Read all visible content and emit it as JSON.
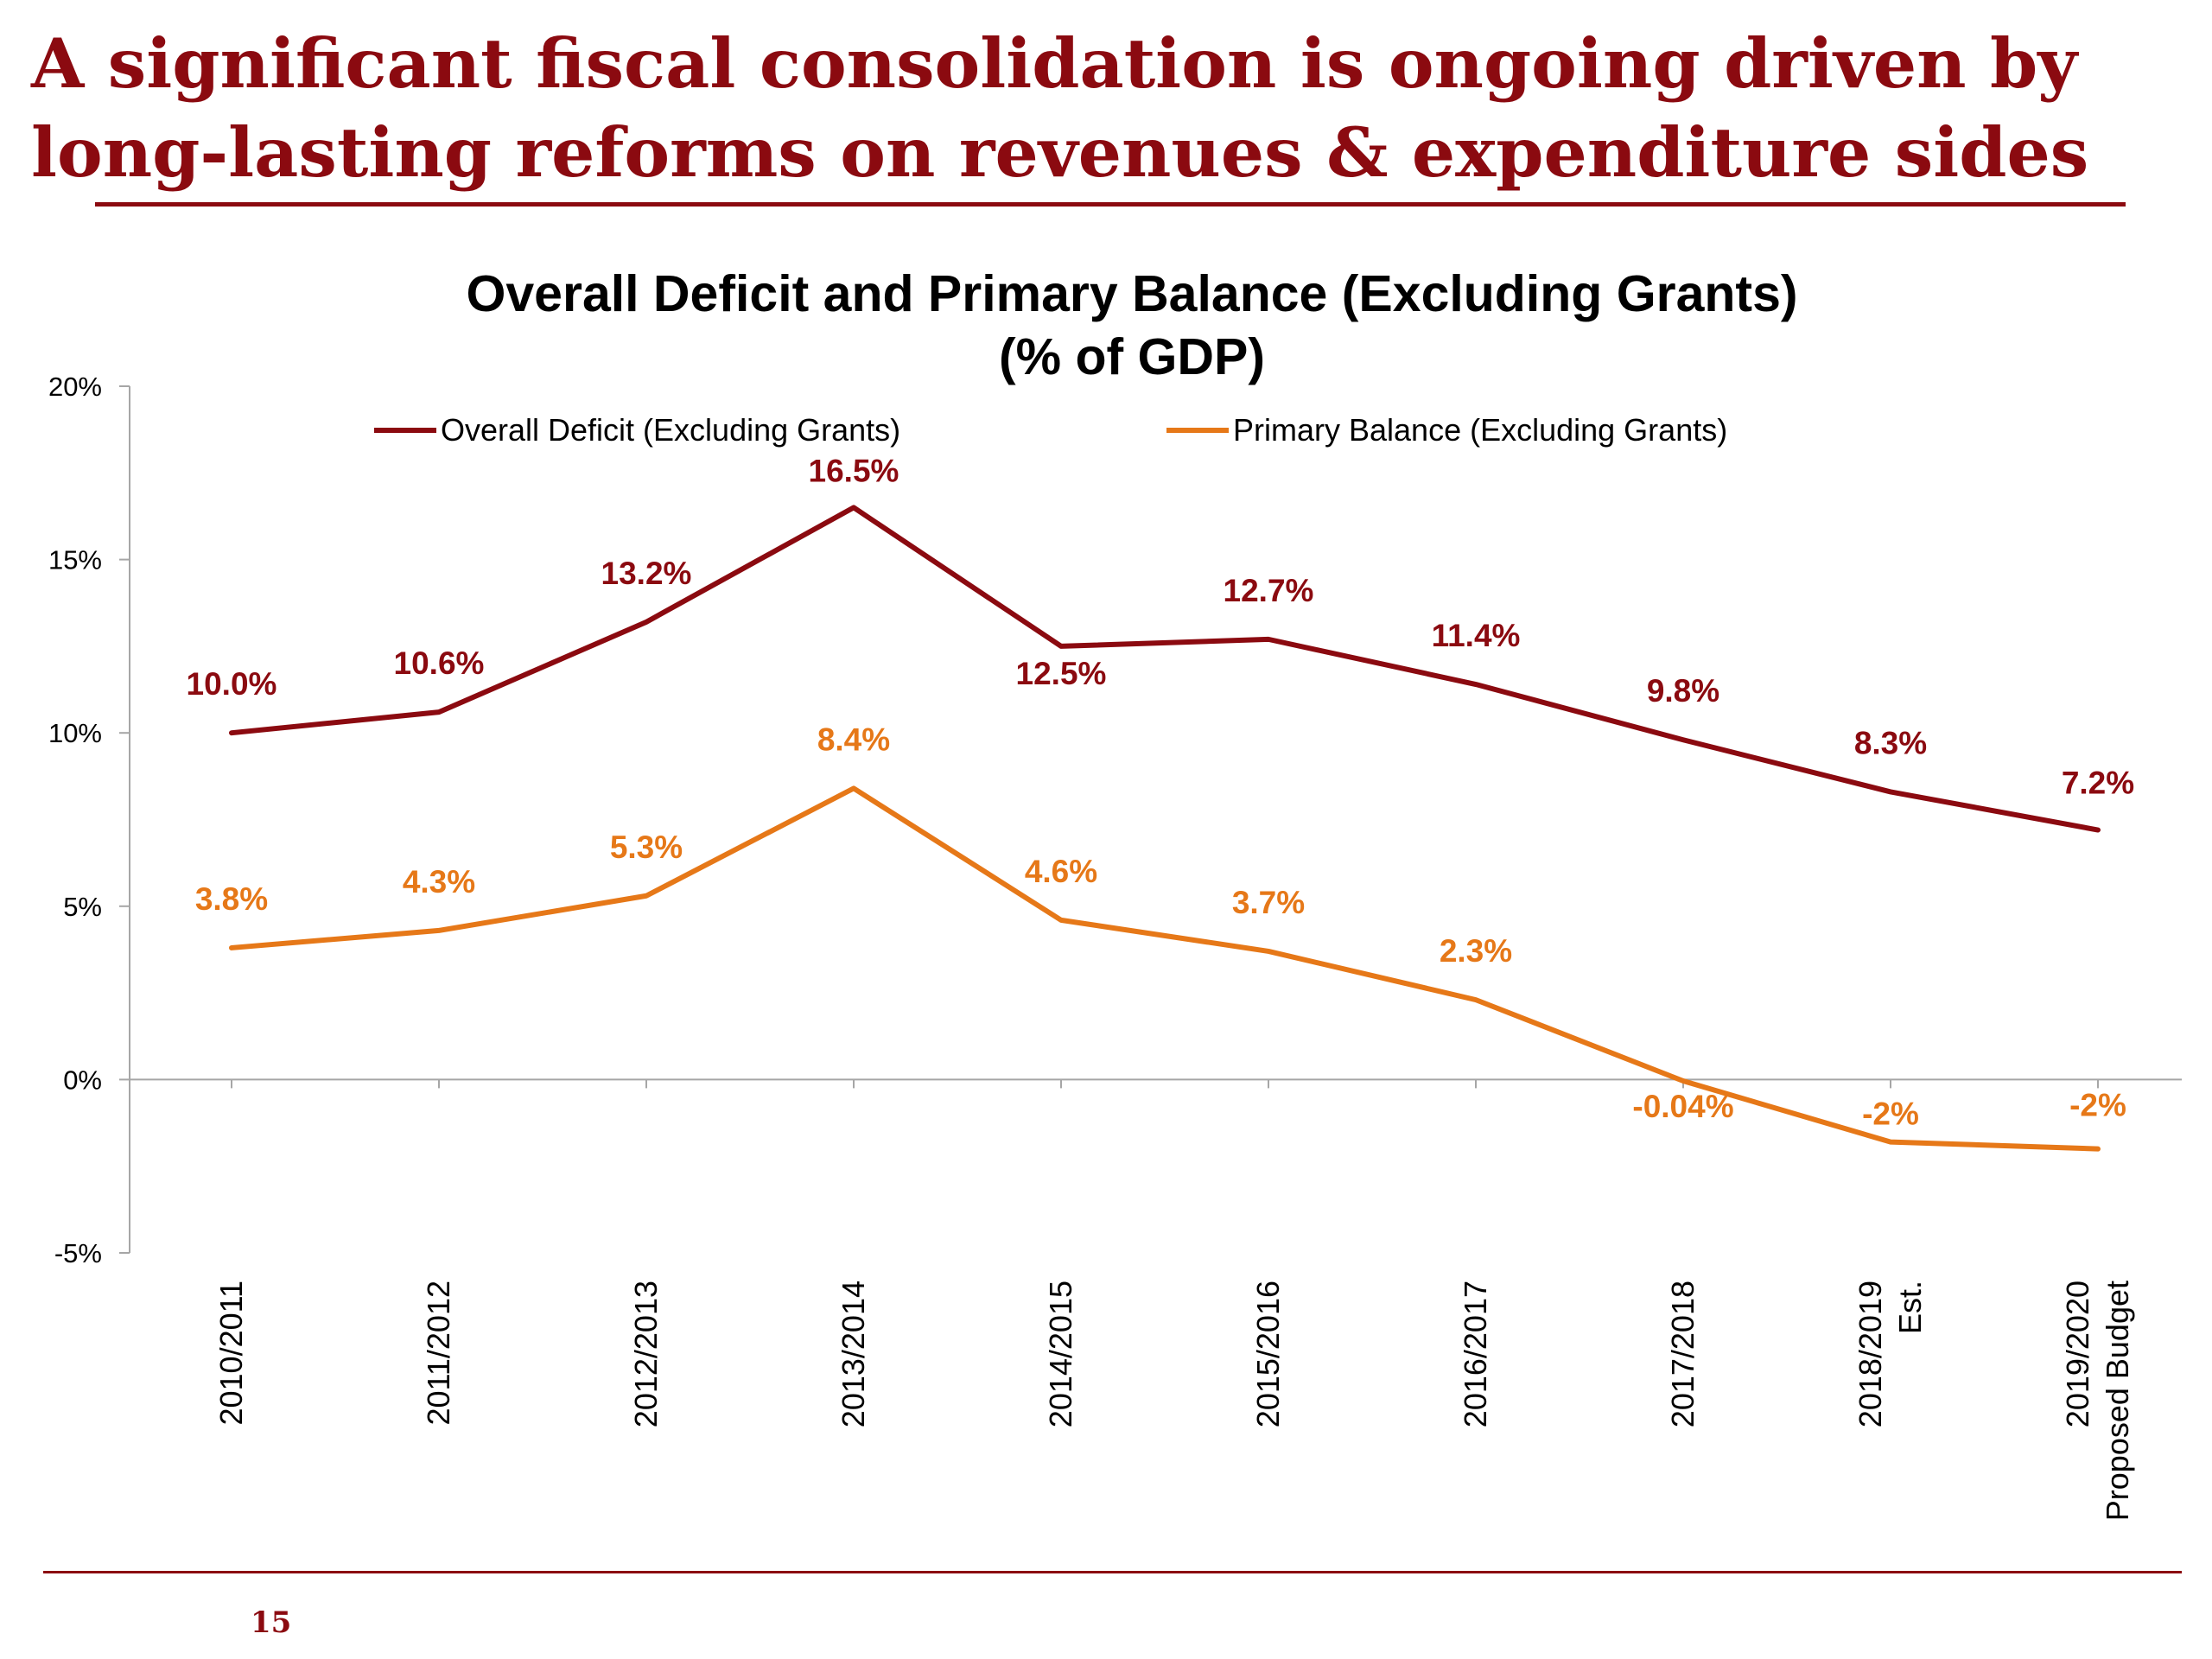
{
  "slide": {
    "title_line1": "A significant fiscal consolidation is ongoing driven by",
    "title_line2": "long-lasting reforms on revenues & expenditure  sides",
    "page_number": "15",
    "accent_color": "#8b0a10"
  },
  "chart_data": {
    "type": "line",
    "title_line1": "Overall Deficit and Primary Balance (Excluding Grants)",
    "title_line2": "(% of GDP)",
    "xlabel": "",
    "ylabel": "",
    "ylim": [
      -5,
      20
    ],
    "y_ticks": [
      -5,
      0,
      5,
      10,
      15,
      20
    ],
    "y_tick_labels": [
      "-5%",
      "0%",
      "5%",
      "10%",
      "15%",
      "20%"
    ],
    "grid": false,
    "legend_position": "top",
    "categories": [
      [
        "2010/2011"
      ],
      [
        "2011/2012"
      ],
      [
        "2012/2013"
      ],
      [
        "2013/2014"
      ],
      [
        "2014/2015"
      ],
      [
        "2015/2016"
      ],
      [
        "2016/2017"
      ],
      [
        "2017/2018"
      ],
      [
        "2018/2019",
        "Est."
      ],
      [
        "2019/2020",
        "Proposed Budget"
      ]
    ],
    "series": [
      {
        "name": "Overall Deficit (Excluding Grants)",
        "color": "#8b0a10",
        "values": [
          10.0,
          10.6,
          13.2,
          16.5,
          12.5,
          12.7,
          11.4,
          9.8,
          8.3,
          7.2
        ],
        "labels": [
          "10.0%",
          "10.6%",
          "13.2%",
          "16.5%",
          "12.5%",
          "12.7%",
          "11.4%",
          "9.8%",
          "8.3%",
          "7.2%"
        ]
      },
      {
        "name": "Primary Balance (Excluding Grants)",
        "color": "#e67818",
        "values": [
          3.8,
          4.3,
          5.3,
          8.4,
          4.6,
          3.7,
          2.3,
          -0.04,
          -1.8,
          -2.0
        ],
        "labels": [
          "3.8%",
          "4.3%",
          "5.3%",
          "8.4%",
          "4.6%",
          "3.7%",
          "2.3%",
          "-0.04%",
          "-2%",
          "-2%"
        ]
      }
    ]
  }
}
